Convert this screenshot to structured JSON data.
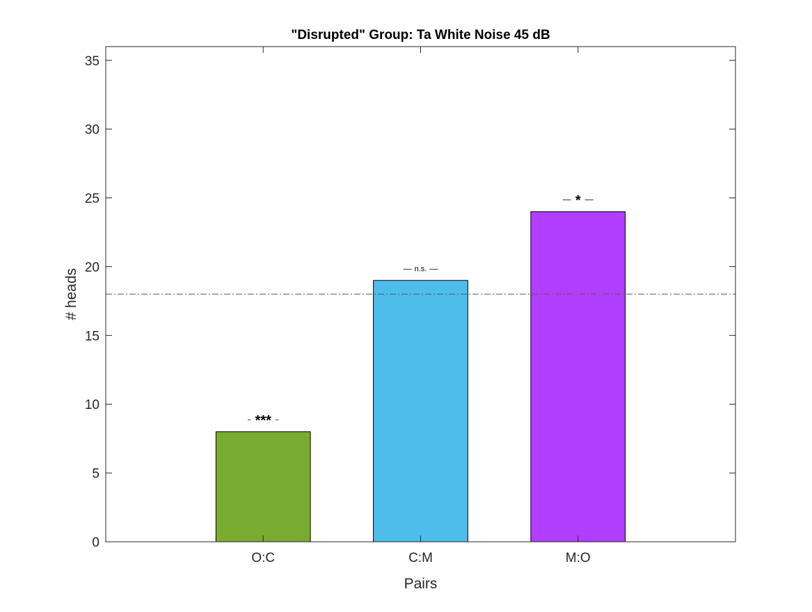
{
  "chart_data": {
    "type": "bar",
    "title": "\"Disrupted\" Group: Ta White Noise 45 dB",
    "xlabel": "Pairs",
    "ylabel": "# heads",
    "categories": [
      "O:C",
      "C:M",
      "M:O"
    ],
    "values": [
      8,
      19,
      24
    ],
    "bar_colors": [
      "#7aab31",
      "#4dbeec",
      "#b23eff"
    ],
    "significance": [
      "***",
      "n.s.",
      "*"
    ],
    "reference_line": {
      "y": 18,
      "style": "dash-dot",
      "color": "#555555"
    },
    "ylim": [
      0,
      36
    ],
    "yticks": [
      0,
      5,
      10,
      15,
      20,
      25,
      30,
      35
    ],
    "xlim": [
      0,
      4
    ],
    "grid": false,
    "legend": "none"
  }
}
